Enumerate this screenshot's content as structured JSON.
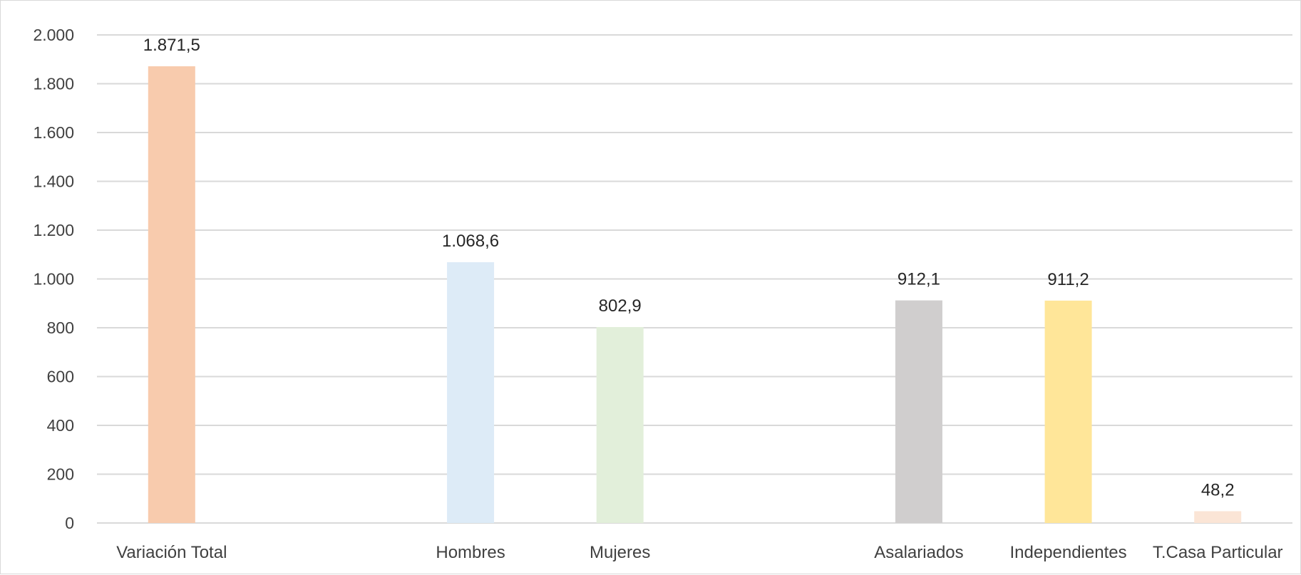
{
  "chart_data": {
    "type": "bar",
    "title": "",
    "xlabel": "",
    "ylabel": "",
    "ylim": [
      0,
      2000
    ],
    "yticks": [
      0,
      200,
      400,
      600,
      800,
      1000,
      1200,
      1400,
      1600,
      1800,
      2000
    ],
    "ytick_labels": [
      "0",
      "200",
      "400",
      "600",
      "800",
      "1.000",
      "1.200",
      "1.400",
      "1.600",
      "1.800",
      "2.000"
    ],
    "grid": true,
    "legend": "none",
    "categories": [
      "Variación Total",
      "",
      "Hombres",
      "Mujeres",
      "",
      "Asalariados",
      "Independientes",
      "T.Casa Particular"
    ],
    "values": [
      1871.5,
      null,
      1068.6,
      802.9,
      null,
      912.1,
      911.2,
      48.2
    ],
    "data_labels": [
      "1.871,5",
      "",
      "1.068,6",
      "802,9",
      "",
      "912,1",
      "911,2",
      "48,2"
    ],
    "colors": [
      "#f8cbad",
      "",
      "#ddebf7",
      "#e2efda",
      "",
      "#d0cece",
      "#ffe699",
      "#fbe5d6"
    ],
    "gridline_color": "#d9d9d9"
  }
}
